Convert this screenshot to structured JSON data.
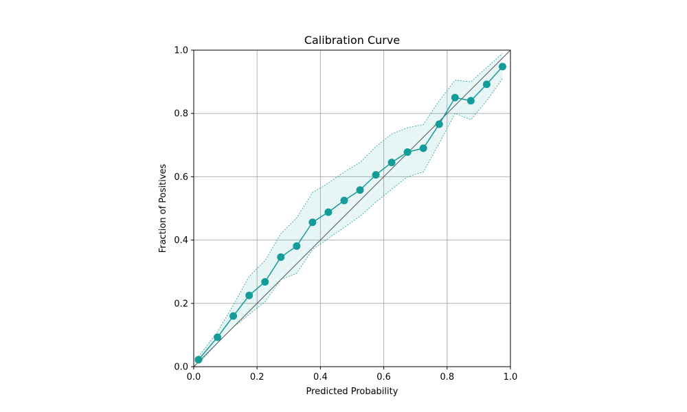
{
  "chart_data": {
    "type": "line",
    "title": "Calibration Curve",
    "xlabel": "Predicted Probability",
    "ylabel": "Fraction of Positives",
    "xlim": [
      0,
      1
    ],
    "ylim": [
      0,
      1
    ],
    "xticks": [
      "0.0",
      "0.2",
      "0.4",
      "0.6",
      "0.8",
      "1.0"
    ],
    "yticks": [
      "0.0",
      "0.2",
      "0.4",
      "0.6",
      "0.8",
      "1.0"
    ],
    "grid": true,
    "legend": "none",
    "reference_line": {
      "x": [
        0,
        1
      ],
      "y": [
        0,
        1
      ],
      "color": "#555555"
    },
    "series": [
      {
        "color": "#169b9b",
        "x": [
          0.015,
          0.075,
          0.125,
          0.175,
          0.225,
          0.275,
          0.325,
          0.375,
          0.425,
          0.475,
          0.525,
          0.575,
          0.625,
          0.675,
          0.725,
          0.775,
          0.825,
          0.875,
          0.925,
          0.975
        ],
        "y": [
          0.022,
          0.093,
          0.16,
          0.225,
          0.268,
          0.346,
          0.381,
          0.456,
          0.488,
          0.525,
          0.558,
          0.606,
          0.645,
          0.678,
          0.69,
          0.766,
          0.85,
          0.84,
          0.892,
          0.948
        ],
        "lower": [
          0.01,
          0.075,
          0.125,
          0.165,
          0.205,
          0.275,
          0.295,
          0.37,
          0.405,
          0.44,
          0.475,
          0.52,
          0.56,
          0.6,
          0.615,
          0.705,
          0.8,
          0.78,
          0.84,
          0.91
        ],
        "upper": [
          0.032,
          0.11,
          0.195,
          0.285,
          0.335,
          0.42,
          0.47,
          0.55,
          0.58,
          0.615,
          0.645,
          0.695,
          0.735,
          0.755,
          0.765,
          0.84,
          0.905,
          0.9,
          0.945,
          0.99
        ]
      }
    ]
  }
}
